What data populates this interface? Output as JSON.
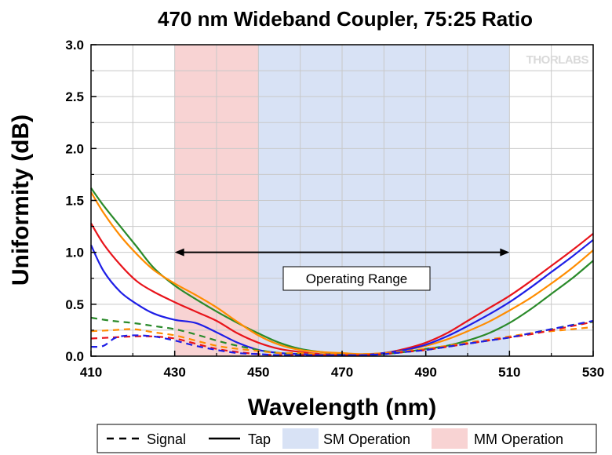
{
  "chart_data": {
    "type": "line",
    "title": "470 nm Wideband Coupler, 75:25 Ratio",
    "xlabel": "Wavelength (nm)",
    "ylabel": "Uniformity (dB)",
    "xlim": [
      410,
      530
    ],
    "ylim": [
      0.0,
      3.0
    ],
    "xticks": [
      "410",
      "430",
      "450",
      "470",
      "490",
      "510",
      "530"
    ],
    "yticks": [
      "0.0",
      "0.5",
      "1.0",
      "1.5",
      "2.0",
      "2.5",
      "3.0"
    ],
    "grid": true,
    "bands": [
      {
        "label": "MM Operation",
        "x": [
          430,
          450
        ],
        "color": "#f8d3d3"
      },
      {
        "label": "SM Operation",
        "x": [
          450,
          510
        ],
        "color": "#d8e2f5"
      }
    ],
    "annotation": {
      "text": "Operating Range",
      "x": [
        430,
        510
      ],
      "y": 1.0
    },
    "legend": {
      "position": "bottom",
      "entries": [
        {
          "label": "Signal",
          "style": "dashed"
        },
        {
          "label": "Tap",
          "style": "solid"
        },
        {
          "label": "SM Operation",
          "style": "band",
          "color": "#d8e2f5"
        },
        {
          "label": "MM Operation",
          "style": "band",
          "color": "#f8d3d3"
        }
      ]
    },
    "series": [
      {
        "style": "solid",
        "color": "#2a8a2a",
        "x": [
          410,
          413,
          417,
          421,
          425,
          430,
          435,
          440,
          445,
          450,
          455,
          460,
          465,
          470,
          475,
          480,
          485,
          490,
          495,
          500,
          505,
          510,
          515,
          520,
          525,
          530
        ],
        "y": [
          1.62,
          1.45,
          1.25,
          1.05,
          0.85,
          0.68,
          0.55,
          0.43,
          0.32,
          0.22,
          0.13,
          0.07,
          0.04,
          0.02,
          0.01,
          0.02,
          0.04,
          0.07,
          0.1,
          0.15,
          0.22,
          0.32,
          0.45,
          0.6,
          0.75,
          0.92
        ]
      },
      {
        "style": "solid",
        "color": "#ff8c00",
        "x": [
          410,
          413,
          417,
          421,
          425,
          430,
          435,
          440,
          445,
          450,
          455,
          460,
          465,
          470,
          475,
          480,
          485,
          490,
          495,
          500,
          505,
          510,
          515,
          520,
          525,
          530
        ],
        "y": [
          1.58,
          1.38,
          1.16,
          0.98,
          0.83,
          0.7,
          0.59,
          0.47,
          0.33,
          0.2,
          0.11,
          0.06,
          0.04,
          0.03,
          0.02,
          0.03,
          0.06,
          0.1,
          0.16,
          0.24,
          0.33,
          0.44,
          0.56,
          0.7,
          0.85,
          1.02
        ]
      },
      {
        "style": "solid",
        "color": "#e8141b",
        "x": [
          410,
          413,
          417,
          421,
          425,
          430,
          435,
          440,
          445,
          450,
          455,
          460,
          465,
          470,
          475,
          480,
          485,
          490,
          495,
          500,
          505,
          510,
          515,
          520,
          525,
          530
        ],
        "y": [
          1.28,
          1.08,
          0.88,
          0.72,
          0.62,
          0.52,
          0.43,
          0.34,
          0.22,
          0.13,
          0.07,
          0.04,
          0.02,
          0.01,
          0.01,
          0.03,
          0.07,
          0.13,
          0.22,
          0.34,
          0.46,
          0.58,
          0.72,
          0.87,
          1.02,
          1.18
        ]
      },
      {
        "style": "solid",
        "color": "#1e1ee6",
        "x": [
          410,
          413,
          417,
          421,
          425,
          430,
          435,
          440,
          445,
          450,
          455,
          460,
          465,
          470,
          475,
          480,
          485,
          490,
          495,
          500,
          505,
          510,
          515,
          520,
          525,
          530
        ],
        "y": [
          1.07,
          0.82,
          0.62,
          0.5,
          0.41,
          0.35,
          0.32,
          0.23,
          0.13,
          0.06,
          0.03,
          0.02,
          0.01,
          0.01,
          0.01,
          0.03,
          0.06,
          0.11,
          0.19,
          0.29,
          0.4,
          0.52,
          0.66,
          0.81,
          0.96,
          1.12
        ]
      },
      {
        "style": "dashed",
        "color": "#2a8a2a",
        "x": [
          410,
          415,
          420,
          425,
          430,
          435,
          440,
          445,
          450,
          455,
          460,
          465,
          470,
          475,
          480,
          485,
          490,
          495,
          500,
          505,
          510,
          515,
          520,
          525,
          530
        ],
        "y": [
          0.37,
          0.34,
          0.32,
          0.29,
          0.26,
          0.21,
          0.15,
          0.1,
          0.06,
          0.03,
          0.02,
          0.01,
          0.01,
          0.01,
          0.02,
          0.04,
          0.06,
          0.09,
          0.12,
          0.15,
          0.18,
          0.22,
          0.26,
          0.3,
          0.33
        ]
      },
      {
        "style": "dashed",
        "color": "#ff8c00",
        "x": [
          410,
          415,
          420,
          425,
          430,
          435,
          440,
          445,
          450,
          455,
          460,
          465,
          470,
          475,
          480,
          485,
          490,
          495,
          500,
          505,
          510,
          515,
          520,
          525,
          530
        ],
        "y": [
          0.24,
          0.25,
          0.26,
          0.23,
          0.2,
          0.15,
          0.1,
          0.07,
          0.05,
          0.03,
          0.03,
          0.02,
          0.02,
          0.02,
          0.03,
          0.05,
          0.07,
          0.1,
          0.13,
          0.16,
          0.19,
          0.22,
          0.24,
          0.26,
          0.28
        ]
      },
      {
        "style": "dashed",
        "color": "#e8141b",
        "x": [
          410,
          415,
          420,
          425,
          430,
          435,
          440,
          445,
          450,
          455,
          460,
          465,
          470,
          475,
          480,
          485,
          490,
          495,
          500,
          505,
          510,
          515,
          520,
          525,
          530
        ],
        "y": [
          0.17,
          0.18,
          0.19,
          0.19,
          0.17,
          0.12,
          0.07,
          0.04,
          0.02,
          0.01,
          0.01,
          0.01,
          0.01,
          0.01,
          0.02,
          0.04,
          0.06,
          0.09,
          0.12,
          0.15,
          0.18,
          0.21,
          0.25,
          0.29,
          0.33
        ]
      },
      {
        "style": "dashed",
        "color": "#1e1ee6",
        "x": [
          410,
          413,
          416,
          420,
          425,
          430,
          435,
          440,
          445,
          450,
          455,
          460,
          465,
          470,
          475,
          480,
          485,
          490,
          495,
          500,
          505,
          510,
          515,
          520,
          525,
          530
        ],
        "y": [
          0.09,
          0.1,
          0.18,
          0.2,
          0.19,
          0.15,
          0.1,
          0.06,
          0.03,
          0.02,
          0.01,
          0.01,
          0.01,
          0.01,
          0.01,
          0.02,
          0.04,
          0.06,
          0.09,
          0.12,
          0.15,
          0.18,
          0.22,
          0.26,
          0.3,
          0.34
        ]
      }
    ]
  },
  "logo": {
    "text": "THORLABS"
  }
}
